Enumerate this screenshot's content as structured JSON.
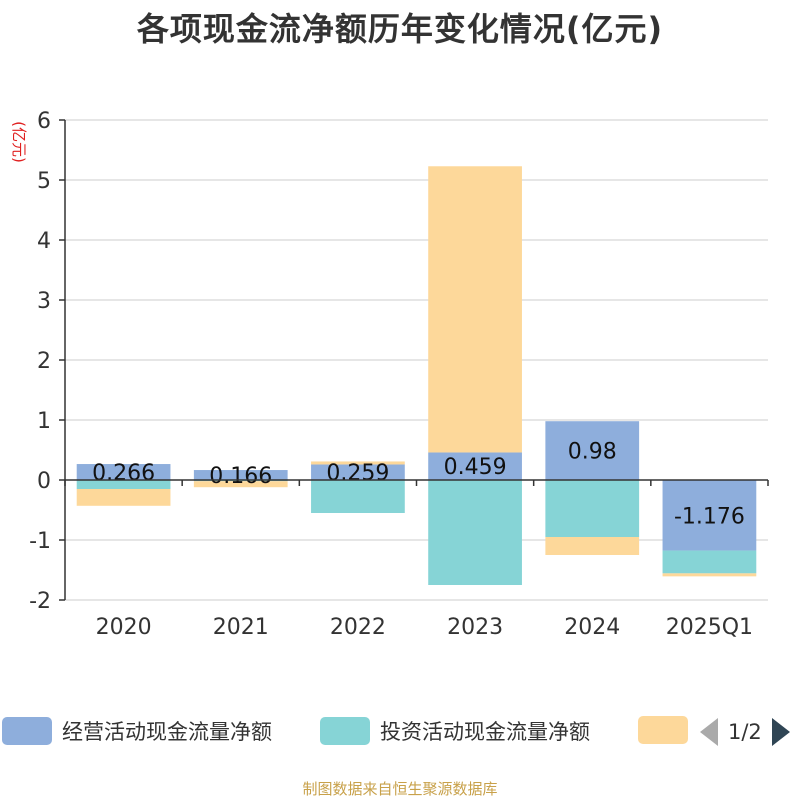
{
  "chart_data": {
    "type": "bar",
    "stacked": true,
    "title": "各项现金流净额历年变化情况(亿元)",
    "ylabel": "(亿元)",
    "categories": [
      "2020",
      "2021",
      "2022",
      "2023",
      "2024",
      "2025Q1"
    ],
    "ylim": [
      -2,
      6
    ],
    "yticks": [
      -2,
      -1,
      0,
      1,
      2,
      3,
      4,
      5,
      6
    ],
    "grid": true,
    "legend_position": "bottom",
    "series": [
      {
        "name": "经营活动现金流量净额",
        "color": "#8eaedc",
        "values": [
          0.266,
          0.166,
          0.259,
          0.459,
          0.98,
          -1.176
        ],
        "labels": [
          "0.266",
          "0.166",
          "0.259",
          "0.459",
          "0.98",
          "-1.176"
        ]
      },
      {
        "name": "投资活动现金流量净额",
        "color": "#86d4d6",
        "values": [
          -0.15,
          -0.02,
          -0.55,
          -1.75,
          -0.95,
          -0.38
        ]
      },
      {
        "name": "",
        "color": "#fdd89a",
        "values": [
          -0.28,
          -0.1,
          0.05,
          4.77,
          -0.3,
          -0.05
        ]
      }
    ]
  },
  "legend": {
    "page": "1/2"
  },
  "footer": {
    "source": "制图数据来自恒生聚源数据库"
  }
}
